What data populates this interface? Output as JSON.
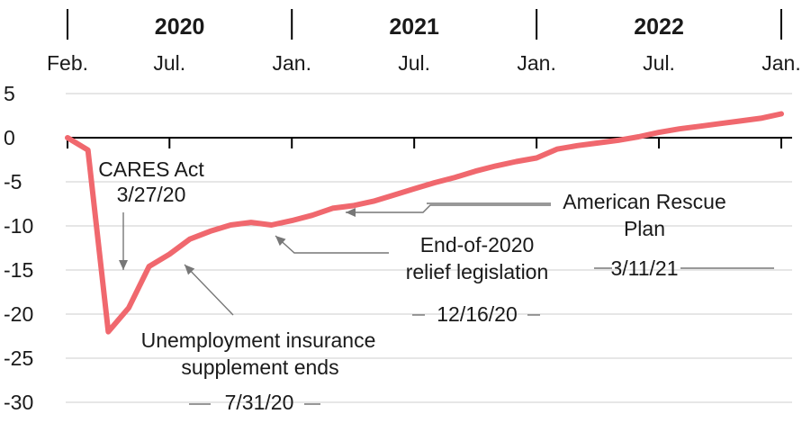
{
  "chart_data": {
    "type": "line",
    "title": "",
    "xlabel": "",
    "ylabel": "",
    "ylim": [
      -30,
      5
    ],
    "yticks": [
      5,
      0,
      -5,
      -10,
      -15,
      -20,
      -25,
      -30
    ],
    "xlim": [
      "2020-02",
      "2023-01"
    ],
    "x_month_ticks": [
      {
        "label": "Feb.",
        "x": "2020-02"
      },
      {
        "label": "Jul.",
        "x": "2020-07"
      },
      {
        "label": "Jan.",
        "x": "2021-01"
      },
      {
        "label": "Jul.",
        "x": "2021-07"
      },
      {
        "label": "Jan.",
        "x": "2022-01"
      },
      {
        "label": "Jul.",
        "x": "2022-07"
      },
      {
        "label": "Jan.",
        "x": "2023-01"
      }
    ],
    "x_year_labels": [
      "2020",
      "2021",
      "2022"
    ],
    "grid": true,
    "series": [
      {
        "color": "#f0686e",
        "x": [
          "2020-02",
          "2020-03",
          "2020-04",
          "2020-05",
          "2020-06",
          "2020-07",
          "2020-08",
          "2020-09",
          "2020-10",
          "2020-11",
          "2020-12",
          "2021-01",
          "2021-02",
          "2021-03",
          "2021-04",
          "2021-05",
          "2021-06",
          "2021-07",
          "2021-08",
          "2021-09",
          "2021-10",
          "2021-11",
          "2021-12",
          "2022-01",
          "2022-02",
          "2022-03",
          "2022-04",
          "2022-05",
          "2022-06",
          "2022-07",
          "2022-08",
          "2022-09",
          "2022-10",
          "2022-11",
          "2022-12",
          "2023-01"
        ],
        "values": [
          0,
          -1.4,
          -22.0,
          -19.3,
          -14.6,
          -13.2,
          -11.5,
          -10.6,
          -9.9,
          -9.6,
          -9.9,
          -9.4,
          -8.8,
          -8.0,
          -7.7,
          -7.2,
          -6.5,
          -5.8,
          -5.1,
          -4.5,
          -3.8,
          -3.2,
          -2.7,
          -2.3,
          -1.3,
          -0.9,
          -0.6,
          -0.3,
          0.1,
          0.6,
          1.0,
          1.3,
          1.6,
          1.9,
          2.2,
          2.7
        ]
      }
    ],
    "annotations": [
      {
        "lines": [
          "CARES Act",
          "3/27/20"
        ],
        "target": {
          "x": "2020-04",
          "y": -16.5
        }
      },
      {
        "lines": [
          "Unemployment insurance",
          "supplement ends",
          "7/31/20"
        ],
        "target": {
          "x": "2020-07",
          "y": -14.0
        }
      },
      {
        "lines": [
          "End-of-2020",
          "relief legislation",
          "12/16/20"
        ],
        "target": {
          "x": "2020-12",
          "y": -10.6
        }
      },
      {
        "lines": [
          "American Rescue",
          "Plan",
          "3/11/21"
        ],
        "target": {
          "x": "2021-03",
          "y": -8.4
        }
      }
    ]
  },
  "colors": {
    "line": "#f0686e",
    "grid": "#cccccc",
    "leader": "#777777"
  }
}
